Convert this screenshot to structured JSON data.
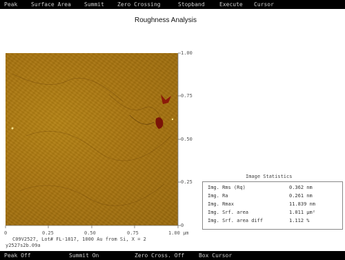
{
  "menu": [
    "Peak",
    "Surface Area",
    "Summit",
    "Zero Crossing",
    "Stopband",
    "Execute",
    "Cursor"
  ],
  "title": "Roughness Analysis",
  "yaxis": {
    "ticks": [
      "1.00",
      "0.75",
      "0.50",
      "0.25",
      "0"
    ]
  },
  "xaxis": {
    "ticks": [
      "0",
      "0.25",
      "0.50",
      "0.75",
      "1.00 µm"
    ]
  },
  "caption": "C09V2527, Lot# FL-1817, 1000 Au from Si,  X = 2",
  "file_id": "y2527s2b.09a",
  "stats": {
    "title": "Image Statistics",
    "rows": [
      {
        "label": "Img. Rms (Rq)",
        "value": "0.362 nm"
      },
      {
        "label": "Img. Ra",
        "value": "0.261 nm"
      },
      {
        "label": "Img. Rmax",
        "value": "11.839 nm"
      },
      {
        "label": "Img. Srf. area",
        "value": "1.011 µm²"
      },
      {
        "label": "Img. Srf. area diff",
        "value": "1.112 %"
      }
    ]
  },
  "status": [
    "Peak Off",
    "Summit On",
    "Zero Cross. Off",
    "Box Cursor"
  ],
  "colors": {
    "bar": "#000000",
    "afm_base": "#a97510",
    "defect": "#8b1a0a"
  }
}
